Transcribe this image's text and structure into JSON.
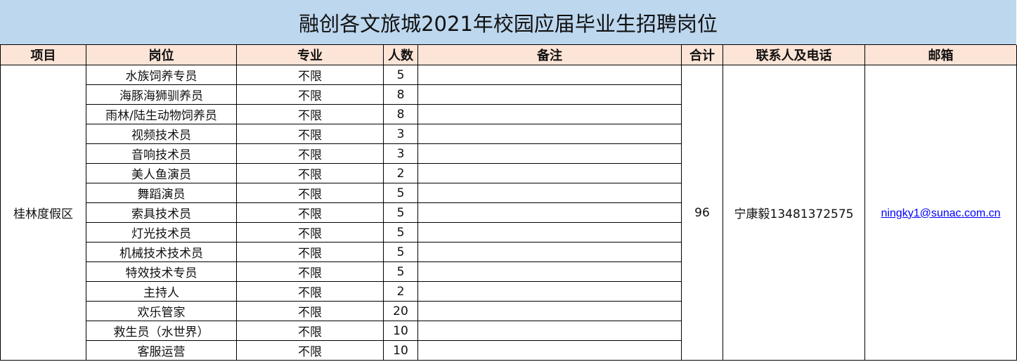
{
  "title": "融创各文旅城2021年校园应届毕业生招聘岗位",
  "headers": [
    "项目",
    "岗位",
    "专业",
    "人数",
    "备注",
    "合计",
    "联系人及电话",
    "邮箱"
  ],
  "project": "桂林度假区",
  "total": "96",
  "contact": "宁康毅13481372575",
  "email": "ningky1@sunac.com.cn",
  "rows": [
    {
      "position": "水族饲养专员",
      "major": "不限",
      "count": "5",
      "note": ""
    },
    {
      "position": "海豚海狮驯养员",
      "major": "不限",
      "count": "8",
      "note": ""
    },
    {
      "position": "雨林/陆生动物饲养员",
      "major": "不限",
      "count": "8",
      "note": ""
    },
    {
      "position": "视频技术员",
      "major": "不限",
      "count": "3",
      "note": ""
    },
    {
      "position": "音响技术员",
      "major": "不限",
      "count": "3",
      "note": ""
    },
    {
      "position": "美人鱼演员",
      "major": "不限",
      "count": "2",
      "note": ""
    },
    {
      "position": "舞蹈演员",
      "major": "不限",
      "count": "5",
      "note": ""
    },
    {
      "position": "索具技术员",
      "major": "不限",
      "count": "5",
      "note": ""
    },
    {
      "position": "灯光技术员",
      "major": "不限",
      "count": "5",
      "note": ""
    },
    {
      "position": "机械技术技术员",
      "major": "不限",
      "count": "5",
      "note": ""
    },
    {
      "position": "特效技术专员",
      "major": "不限",
      "count": "5",
      "note": ""
    },
    {
      "position": "主持人",
      "major": "不限",
      "count": "2",
      "note": ""
    },
    {
      "position": "欢乐管家",
      "major": "不限",
      "count": "20",
      "note": ""
    },
    {
      "position": "救生员（水世界）",
      "major": "不限",
      "count": "10",
      "note": ""
    },
    {
      "position": "客服运营",
      "major": "不限",
      "count": "10",
      "note": ""
    }
  ],
  "colors": {
    "title_bg": "#BDD7EE",
    "header_bg": "#FCE4D6",
    "link": "#0000FF"
  }
}
